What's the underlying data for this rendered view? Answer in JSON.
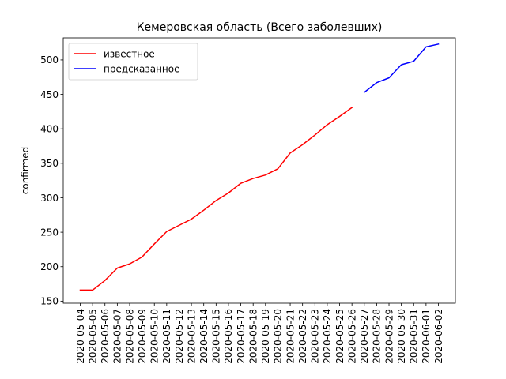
{
  "chart_data": {
    "type": "line",
    "title": "Кемеровская область (Всего заболевших)",
    "xlabel": "",
    "ylabel": "confirmed",
    "ylim": [
      147,
      532
    ],
    "yticks": [
      150,
      200,
      250,
      300,
      350,
      400,
      450,
      500
    ],
    "x": [
      "2020-05-04",
      "2020-05-05",
      "2020-05-06",
      "2020-05-07",
      "2020-05-08",
      "2020-05-09",
      "2020-05-10",
      "2020-05-11",
      "2020-05-12",
      "2020-05-13",
      "2020-05-14",
      "2020-05-15",
      "2020-05-16",
      "2020-05-17",
      "2020-05-18",
      "2020-05-19",
      "2020-05-20",
      "2020-05-21",
      "2020-05-22",
      "2020-05-23",
      "2020-05-24",
      "2020-05-25",
      "2020-05-26",
      "2020-05-27",
      "2020-05-28",
      "2020-05-29",
      "2020-05-30",
      "2020-05-31",
      "2020-06-01",
      "2020-06-02"
    ],
    "grid": false,
    "legend_position": "upper-left",
    "series": [
      {
        "name": "известное",
        "color": "#ff0000",
        "x": [
          "2020-05-04",
          "2020-05-05",
          "2020-05-06",
          "2020-05-07",
          "2020-05-08",
          "2020-05-09",
          "2020-05-10",
          "2020-05-11",
          "2020-05-12",
          "2020-05-13",
          "2020-05-14",
          "2020-05-15",
          "2020-05-16",
          "2020-05-17",
          "2020-05-18",
          "2020-05-19",
          "2020-05-20",
          "2020-05-21",
          "2020-05-22",
          "2020-05-23",
          "2020-05-24",
          "2020-05-25",
          "2020-05-26"
        ],
        "values": [
          166,
          166,
          180,
          198,
          204,
          214,
          233,
          251,
          260,
          269,
          282,
          296,
          307,
          321,
          328,
          333,
          342,
          365,
          377,
          391,
          406,
          418,
          431
        ]
      },
      {
        "name": "предсказанное",
        "color": "#0000ff",
        "x": [
          "2020-05-27",
          "2020-05-28",
          "2020-05-29",
          "2020-05-30",
          "2020-05-31",
          "2020-06-01",
          "2020-06-02"
        ],
        "values": [
          453,
          467,
          474,
          493,
          498,
          519,
          523
        ]
      }
    ]
  }
}
